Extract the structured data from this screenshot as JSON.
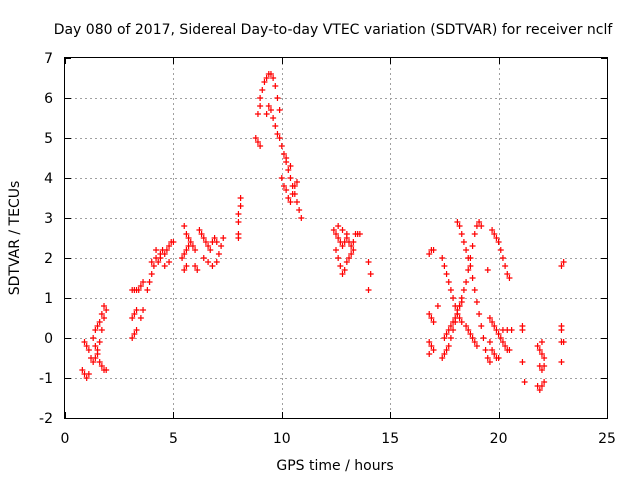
{
  "chart_data": {
    "type": "scatter",
    "title": "Day 080 of 2017, Sidereal Day-to-day VTEC variation (SDTVAR) for receiver nclf",
    "xlabel": "GPS time / hours",
    "ylabel": "SDTVAR / TECUs",
    "xlim": [
      0,
      25
    ],
    "ylim": [
      -2,
      7
    ],
    "xticks": [
      "0",
      "5",
      "10",
      "15",
      "20",
      "25"
    ],
    "yticks": [
      "-2",
      "-1",
      "0",
      "1",
      "2",
      "3",
      "4",
      "5",
      "6",
      "7"
    ],
    "grid": true,
    "marker": "plus",
    "color": "#ff0000",
    "series": [
      {
        "name": "SDTVAR",
        "points": [
          [
            0.8,
            -0.8
          ],
          [
            0.9,
            -0.9
          ],
          [
            1.0,
            -1.0
          ],
          [
            1.1,
            -0.9
          ],
          [
            0.9,
            -0.1
          ],
          [
            1.0,
            -0.2
          ],
          [
            1.1,
            -0.3
          ],
          [
            1.2,
            -0.5
          ],
          [
            1.3,
            -0.6
          ],
          [
            1.4,
            -0.5
          ],
          [
            1.5,
            -0.3
          ],
          [
            1.6,
            -0.1
          ],
          [
            1.7,
            0.2
          ],
          [
            1.8,
            0.5
          ],
          [
            1.9,
            0.7
          ],
          [
            1.3,
            0.0
          ],
          [
            1.4,
            0.2
          ],
          [
            1.5,
            0.3
          ],
          [
            1.6,
            0.4
          ],
          [
            1.7,
            0.6
          ],
          [
            1.8,
            0.8
          ],
          [
            1.4,
            -0.2
          ],
          [
            1.5,
            -0.4
          ],
          [
            1.6,
            -0.6
          ],
          [
            1.7,
            -0.7
          ],
          [
            1.8,
            -0.8
          ],
          [
            1.9,
            -0.8
          ],
          [
            3.1,
            1.2
          ],
          [
            3.2,
            1.2
          ],
          [
            3.3,
            1.2
          ],
          [
            3.4,
            1.2
          ],
          [
            3.5,
            1.3
          ],
          [
            3.6,
            1.4
          ],
          [
            3.1,
            0.5
          ],
          [
            3.2,
            0.6
          ],
          [
            3.3,
            0.7
          ],
          [
            3.1,
            0.0
          ],
          [
            3.2,
            0.1
          ],
          [
            3.3,
            0.2
          ],
          [
            3.5,
            0.5
          ],
          [
            3.6,
            0.7
          ],
          [
            3.8,
            1.2
          ],
          [
            3.9,
            1.4
          ],
          [
            4.0,
            1.6
          ],
          [
            4.1,
            1.8
          ],
          [
            4.2,
            2.0
          ],
          [
            4.3,
            1.9
          ],
          [
            4.4,
            2.1
          ],
          [
            4.5,
            2.2
          ],
          [
            4.6,
            2.1
          ],
          [
            4.7,
            2.2
          ],
          [
            4.8,
            2.3
          ],
          [
            4.9,
            2.4
          ],
          [
            5.0,
            2.4
          ],
          [
            4.0,
            1.9
          ],
          [
            4.2,
            2.2
          ],
          [
            4.4,
            2.0
          ],
          [
            4.6,
            1.8
          ],
          [
            4.8,
            1.9
          ],
          [
            5.4,
            2.0
          ],
          [
            5.5,
            2.1
          ],
          [
            5.6,
            2.2
          ],
          [
            5.7,
            2.3
          ],
          [
            5.5,
            1.7
          ],
          [
            5.6,
            1.8
          ],
          [
            5.5,
            2.8
          ],
          [
            5.6,
            2.6
          ],
          [
            5.7,
            2.5
          ],
          [
            5.8,
            2.4
          ],
          [
            5.9,
            2.3
          ],
          [
            6.0,
            2.2
          ],
          [
            6.0,
            1.8
          ],
          [
            6.1,
            1.7
          ],
          [
            6.2,
            2.7
          ],
          [
            6.3,
            2.6
          ],
          [
            6.4,
            2.5
          ],
          [
            6.5,
            2.4
          ],
          [
            6.6,
            2.3
          ],
          [
            6.7,
            2.2
          ],
          [
            6.8,
            2.4
          ],
          [
            6.9,
            2.5
          ],
          [
            7.0,
            2.4
          ],
          [
            7.1,
            2.1
          ],
          [
            7.2,
            2.3
          ],
          [
            7.3,
            2.5
          ],
          [
            6.4,
            2.0
          ],
          [
            6.6,
            1.9
          ],
          [
            6.8,
            1.8
          ],
          [
            7.0,
            1.9
          ],
          [
            8.0,
            2.6
          ],
          [
            8.0,
            2.9
          ],
          [
            8.0,
            3.1
          ],
          [
            8.1,
            3.3
          ],
          [
            8.1,
            3.5
          ],
          [
            8.0,
            2.5
          ],
          [
            8.8,
            5.0
          ],
          [
            8.9,
            4.9
          ],
          [
            9.0,
            4.8
          ],
          [
            8.9,
            5.6
          ],
          [
            9.0,
            5.8
          ],
          [
            9.0,
            6.0
          ],
          [
            9.1,
            6.2
          ],
          [
            9.2,
            6.4
          ],
          [
            9.3,
            6.5
          ],
          [
            9.4,
            6.6
          ],
          [
            9.5,
            6.6
          ],
          [
            9.6,
            6.5
          ],
          [
            9.7,
            6.3
          ],
          [
            9.8,
            6.0
          ],
          [
            9.9,
            5.7
          ],
          [
            9.4,
            5.8
          ],
          [
            9.5,
            5.7
          ],
          [
            9.6,
            5.5
          ],
          [
            9.7,
            5.3
          ],
          [
            9.8,
            5.1
          ],
          [
            9.3,
            5.6
          ],
          [
            9.9,
            5.0
          ],
          [
            10.0,
            4.8
          ],
          [
            10.1,
            4.6
          ],
          [
            10.2,
            4.4
          ],
          [
            10.3,
            4.2
          ],
          [
            10.4,
            4.0
          ],
          [
            10.5,
            3.8
          ],
          [
            10.6,
            3.6
          ],
          [
            10.7,
            3.4
          ],
          [
            10.8,
            3.2
          ],
          [
            10.9,
            3.0
          ],
          [
            10.0,
            4.0
          ],
          [
            10.1,
            3.8
          ],
          [
            10.2,
            3.7
          ],
          [
            10.3,
            3.5
          ],
          [
            10.4,
            3.4
          ],
          [
            10.5,
            3.6
          ],
          [
            10.6,
            3.8
          ],
          [
            10.7,
            3.9
          ],
          [
            10.2,
            4.5
          ],
          [
            10.4,
            4.3
          ],
          [
            12.4,
            2.7
          ],
          [
            12.5,
            2.6
          ],
          [
            12.6,
            2.5
          ],
          [
            12.7,
            2.4
          ],
          [
            12.8,
            2.3
          ],
          [
            12.9,
            2.4
          ],
          [
            13.0,
            2.5
          ],
          [
            13.1,
            2.4
          ],
          [
            13.2,
            2.3
          ],
          [
            13.3,
            2.4
          ],
          [
            13.4,
            2.6
          ],
          [
            13.5,
            2.6
          ],
          [
            13.6,
            2.6
          ],
          [
            12.5,
            2.2
          ],
          [
            12.6,
            2.0
          ],
          [
            12.7,
            1.8
          ],
          [
            12.8,
            1.6
          ],
          [
            12.9,
            1.7
          ],
          [
            13.0,
            1.9
          ],
          [
            13.1,
            2.0
          ],
          [
            13.2,
            2.1
          ],
          [
            13.3,
            2.2
          ],
          [
            12.6,
            2.8
          ],
          [
            12.8,
            2.7
          ],
          [
            13.0,
            2.6
          ],
          [
            14.0,
            1.9
          ],
          [
            14.1,
            1.6
          ],
          [
            14.0,
            1.2
          ],
          [
            16.8,
            2.1
          ],
          [
            16.9,
            2.2
          ],
          [
            17.0,
            2.2
          ],
          [
            16.8,
            0.6
          ],
          [
            16.9,
            0.5
          ],
          [
            17.0,
            0.4
          ],
          [
            16.8,
            -0.1
          ],
          [
            16.9,
            -0.2
          ],
          [
            17.0,
            -0.3
          ],
          [
            16.8,
            -0.4
          ],
          [
            17.2,
            0.8
          ],
          [
            17.4,
            -0.5
          ],
          [
            17.5,
            -0.4
          ],
          [
            17.6,
            -0.3
          ],
          [
            17.7,
            -0.2
          ],
          [
            17.8,
            0.0
          ],
          [
            17.9,
            0.2
          ],
          [
            18.0,
            0.4
          ],
          [
            18.1,
            0.6
          ],
          [
            18.2,
            0.8
          ],
          [
            18.3,
            0.9
          ],
          [
            17.5,
            0.0
          ],
          [
            17.6,
            0.1
          ],
          [
            17.7,
            0.2
          ],
          [
            17.8,
            0.3
          ],
          [
            17.9,
            0.4
          ],
          [
            18.0,
            0.5
          ],
          [
            18.1,
            0.6
          ],
          [
            18.2,
            0.5
          ],
          [
            18.3,
            0.4
          ],
          [
            17.4,
            2.0
          ],
          [
            17.5,
            1.8
          ],
          [
            17.6,
            1.6
          ],
          [
            17.7,
            1.4
          ],
          [
            17.8,
            1.2
          ],
          [
            17.9,
            1.0
          ],
          [
            18.0,
            0.8
          ],
          [
            18.1,
            0.7
          ],
          [
            18.2,
            0.8
          ],
          [
            18.3,
            1.0
          ],
          [
            18.4,
            1.2
          ],
          [
            18.5,
            1.4
          ],
          [
            18.6,
            1.7
          ],
          [
            18.7,
            2.0
          ],
          [
            18.8,
            2.3
          ],
          [
            18.9,
            2.6
          ],
          [
            19.0,
            2.8
          ],
          [
            19.1,
            2.9
          ],
          [
            19.2,
            2.8
          ],
          [
            18.1,
            2.9
          ],
          [
            18.2,
            2.8
          ],
          [
            18.3,
            2.6
          ],
          [
            18.4,
            2.4
          ],
          [
            18.5,
            2.2
          ],
          [
            18.6,
            2.0
          ],
          [
            18.7,
            1.8
          ],
          [
            18.8,
            1.5
          ],
          [
            18.9,
            1.2
          ],
          [
            19.0,
            0.9
          ],
          [
            19.1,
            0.6
          ],
          [
            19.2,
            0.3
          ],
          [
            19.3,
            0.0
          ],
          [
            19.4,
            -0.3
          ],
          [
            19.5,
            -0.5
          ],
          [
            19.6,
            -0.6
          ],
          [
            18.5,
            0.3
          ],
          [
            18.6,
            0.2
          ],
          [
            18.7,
            0.1
          ],
          [
            18.8,
            0.0
          ],
          [
            18.9,
            -0.1
          ],
          [
            19.0,
            -0.2
          ],
          [
            19.5,
            1.7
          ],
          [
            19.7,
            2.7
          ],
          [
            19.8,
            2.6
          ],
          [
            19.9,
            2.5
          ],
          [
            20.0,
            2.4
          ],
          [
            20.1,
            2.2
          ],
          [
            20.2,
            2.0
          ],
          [
            20.3,
            1.8
          ],
          [
            20.4,
            1.6
          ],
          [
            20.5,
            1.5
          ],
          [
            19.6,
            0.5
          ],
          [
            19.7,
            0.4
          ],
          [
            19.8,
            0.3
          ],
          [
            19.9,
            0.2
          ],
          [
            20.0,
            0.1
          ],
          [
            20.1,
            0.0
          ],
          [
            20.2,
            -0.1
          ],
          [
            20.3,
            -0.2
          ],
          [
            20.4,
            -0.3
          ],
          [
            20.5,
            -0.3
          ],
          [
            19.6,
            -0.1
          ],
          [
            19.7,
            -0.3
          ],
          [
            19.8,
            -0.4
          ],
          [
            19.9,
            -0.5
          ],
          [
            20.0,
            -0.5
          ],
          [
            20.2,
            0.2
          ],
          [
            20.4,
            0.2
          ],
          [
            20.6,
            0.2
          ],
          [
            21.1,
            0.3
          ],
          [
            21.1,
            0.2
          ],
          [
            21.1,
            -0.6
          ],
          [
            21.2,
            -1.1
          ],
          [
            21.8,
            -0.2
          ],
          [
            21.9,
            -0.3
          ],
          [
            22.0,
            -0.4
          ],
          [
            22.1,
            -0.5
          ],
          [
            21.9,
            -0.7
          ],
          [
            22.0,
            -0.8
          ],
          [
            22.1,
            -0.7
          ],
          [
            21.8,
            -1.2
          ],
          [
            21.9,
            -1.3
          ],
          [
            22.0,
            -1.2
          ],
          [
            22.1,
            -1.1
          ],
          [
            22.0,
            -0.1
          ],
          [
            22.9,
            0.3
          ],
          [
            22.9,
            0.2
          ],
          [
            22.9,
            -0.1
          ],
          [
            23.0,
            -0.1
          ],
          [
            22.9,
            -0.6
          ],
          [
            22.9,
            1.8
          ],
          [
            23.0,
            1.9
          ]
        ]
      }
    ]
  }
}
